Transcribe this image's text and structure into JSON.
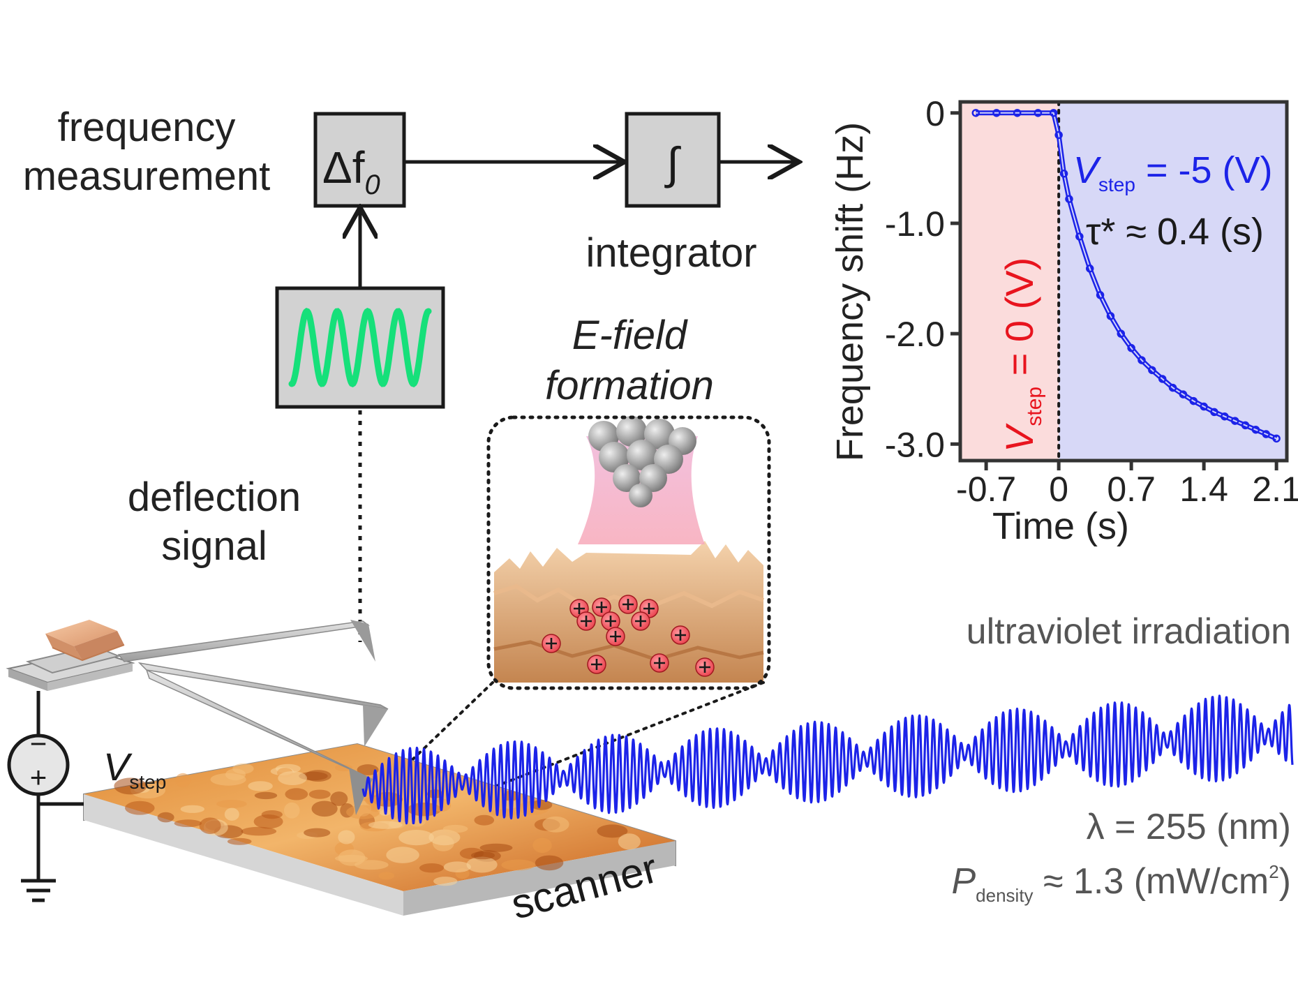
{
  "colors": {
    "accent_blue": "#1c23e8",
    "accent_red": "#e8141e",
    "trace_green": "#16e07a",
    "surface_orange": "#d9772a",
    "plot_bg_red": "#fbdcdc",
    "plot_bg_blue": "#d7d8f7"
  },
  "icons": {
    "frequency_box": "delta-f0-icon",
    "integrator_box": "integral-icon",
    "oscilloscope": "sine-wave-icon",
    "voltage_source": "voltage-source-icon",
    "ground": "ground-icon"
  },
  "labels": {
    "frequency_measurement_line1": "frequency",
    "frequency_measurement_line2": "measurement",
    "delta_f0": "Δf",
    "delta_f0_sub": "0",
    "integral_symbol": "∫",
    "integrator": "integrator",
    "efield_line1": "E-field",
    "efield_line2": "formation",
    "deflection_line1": "deflection",
    "deflection_line2": "signal",
    "ultraviolet": "ultraviolet irradiation",
    "vstep_var": "V",
    "vstep_sub": "step",
    "scanner": "scanner",
    "lambda": "λ = 255 (nm)",
    "pdensity_var": "P",
    "pdensity_sub": "density",
    "pdensity_value": " ≈ 1.3 (mW/cm",
    "pdensity_sup": "2",
    "pdensity_close": ")",
    "minus_sign": "−",
    "plus_sign": "+"
  },
  "chart_data": {
    "type": "scatter",
    "xlabel": "Time (s)",
    "ylabel": "Frequency shift (Hz)",
    "xlim": [
      -0.95,
      2.2
    ],
    "ylim": [
      -3.15,
      0.1
    ],
    "xticks": [
      "-0.7",
      "0",
      "0.7",
      "1.4",
      "2.1"
    ],
    "yticks": [
      "0",
      "-1.0",
      "-2.0",
      "-3.0"
    ],
    "regions": [
      {
        "x": [
          -0.95,
          0
        ],
        "color": "#fbdcdc",
        "label_var": "V",
        "label_sub": "step",
        "label_value": " = 0 (V)"
      },
      {
        "x": [
          0,
          2.2
        ],
        "color": "#d7d8f7",
        "label_var": "V",
        "label_sub": "step",
        "label_value": " = -5 (V)"
      }
    ],
    "annotation": "τ* ≈ 0.4 (s)",
    "series": [
      {
        "x": [
          -0.8,
          -0.6,
          -0.4,
          -0.2,
          -0.05,
          0.0,
          0.05,
          0.1,
          0.2,
          0.3,
          0.4,
          0.5,
          0.6,
          0.7,
          0.8,
          0.9,
          1.0,
          1.1,
          1.2,
          1.3,
          1.4,
          1.5,
          1.6,
          1.7,
          1.8,
          1.9,
          2.0,
          2.1
        ],
        "y": [
          0,
          0,
          0,
          0,
          0,
          -0.2,
          -0.55,
          -0.78,
          -1.12,
          -1.41,
          -1.65,
          -1.84,
          -2.0,
          -2.13,
          -2.24,
          -2.33,
          -2.41,
          -2.49,
          -2.55,
          -2.61,
          -2.66,
          -2.71,
          -2.75,
          -2.79,
          -2.83,
          -2.87,
          -2.91,
          -2.95
        ]
      }
    ]
  }
}
